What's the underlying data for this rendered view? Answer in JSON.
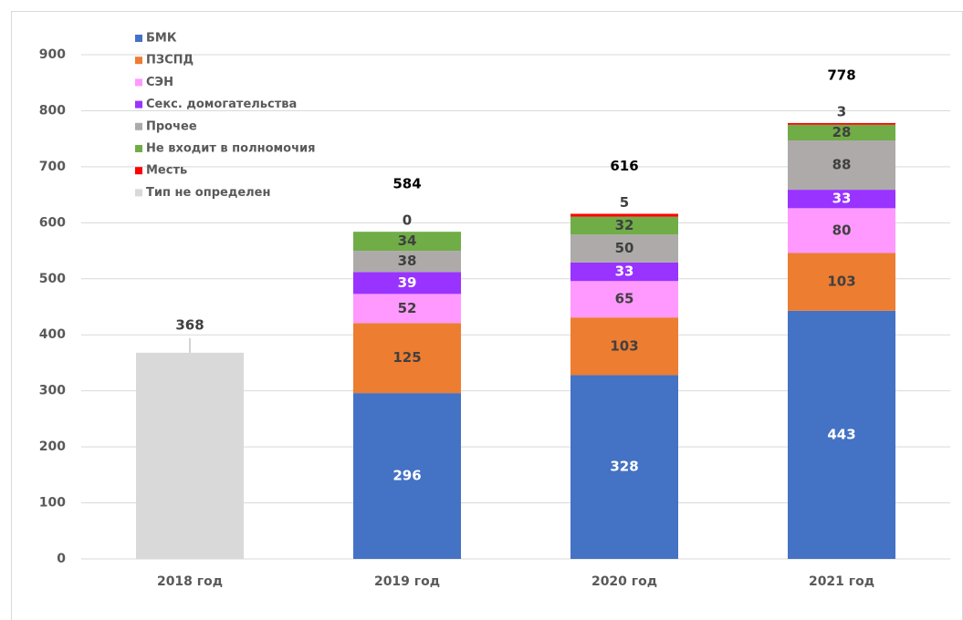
{
  "chart_data": {
    "type": "stacked_bar",
    "categories": [
      "2018 год",
      "2019 год",
      "2020 год",
      "2021 год"
    ],
    "series": [
      {
        "name": "БМК",
        "color": "#4472c4",
        "values": [
          null,
          296,
          328,
          443
        ]
      },
      {
        "name": "ПЗСПД",
        "color": "#ed7d31",
        "values": [
          null,
          125,
          103,
          103
        ]
      },
      {
        "name": "СЭН",
        "color": "#ff99ff",
        "values": [
          null,
          52,
          65,
          80
        ]
      },
      {
        "name": "Секс. домогательства",
        "color": "#9933ff",
        "values": [
          null,
          39,
          33,
          33
        ]
      },
      {
        "name": "Прочее",
        "color": "#aeaaaa",
        "values": [
          null,
          38,
          50,
          88
        ]
      },
      {
        "name": "Не входит в полномочия",
        "color": "#70ad47",
        "values": [
          null,
          34,
          32,
          28
        ]
      },
      {
        "name": "Месть",
        "color": "#ff0000",
        "values": [
          null,
          0,
          5,
          3
        ]
      },
      {
        "name": "Тип не определен",
        "color": "#d9d9d9",
        "values": [
          368,
          null,
          null,
          null
        ]
      }
    ],
    "totals": [
      null,
      584,
      616,
      778
    ],
    "ylim": [
      0,
      900
    ],
    "yticks": [
      0,
      100,
      200,
      300,
      400,
      500,
      600,
      700,
      800,
      900
    ],
    "grid": true,
    "legend": "top-left"
  }
}
